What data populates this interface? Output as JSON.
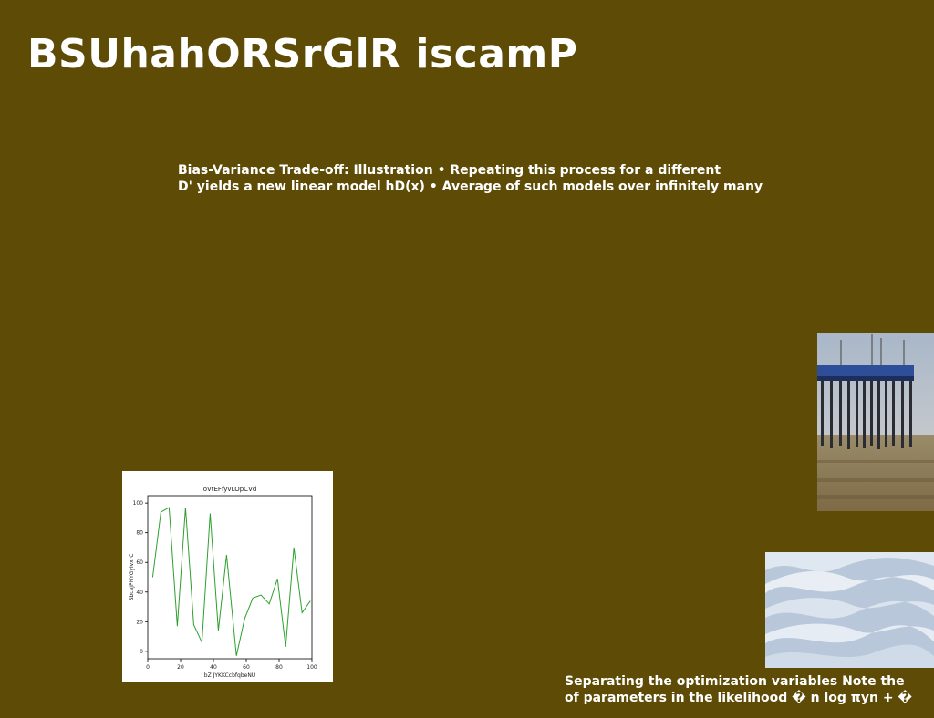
{
  "page": {
    "title": "BSUhahORSrGlR iscamP",
    "background_color": "#5e4b06"
  },
  "top_text": {
    "line1": "Bias-Variance Trade-off: Illustration • Repeating this process for a different",
    "line2": "D' yields a new linear model hD(x) • Average of such models over infinitely many"
  },
  "bottom_text": {
    "line1": "Separating the optimization variables Note the",
    "line2": "of parameters in the likelihood � n log πyn + �"
  },
  "images": {
    "pier": "pier-on-beach-photo",
    "waves": "abstract-white-waves-photo"
  },
  "chart_data": {
    "type": "line",
    "title": "oVtEFfyvLOpCVd",
    "xlabel": "bZ JYKKCcbfqbeNU",
    "ylabel": "SbcaJPNYGyivxrC",
    "xlim": [
      0,
      100
    ],
    "ylim": [
      -5,
      105
    ],
    "xticks": [
      0,
      20,
      40,
      60,
      80,
      100
    ],
    "yticks": [
      0,
      20,
      40,
      60,
      80,
      100
    ],
    "line_color": "#2ca02c",
    "grid": false,
    "series": [
      {
        "x": [
          3,
          8,
          13,
          18,
          23,
          28,
          33,
          38,
          43,
          48,
          54,
          59,
          64,
          69,
          74,
          79,
          84,
          89,
          94,
          99
        ],
        "values": [
          50,
          94,
          97,
          17,
          97,
          18,
          6,
          93,
          14,
          65,
          -3,
          22,
          36,
          38,
          32,
          49,
          3,
          70,
          26,
          34
        ]
      }
    ]
  }
}
